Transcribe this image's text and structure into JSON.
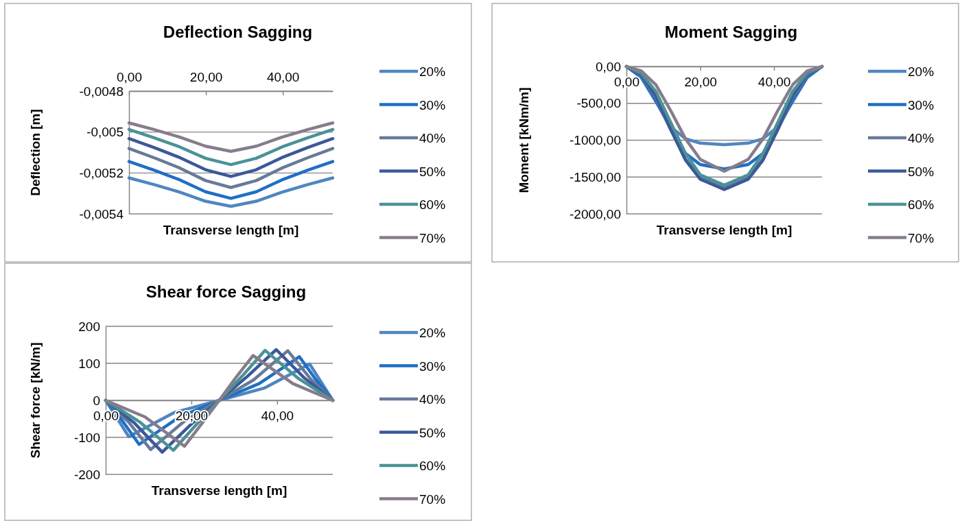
{
  "chart_data": [
    {
      "type": "line",
      "title": "Deflection Sagging",
      "xlabel": "Transverse length [m]",
      "ylabel": "Deflection [m]",
      "xlim": [
        0,
        53
      ],
      "xticks": [
        {
          "value": 0,
          "label": "0,00"
        },
        {
          "value": 20,
          "label": "20,00"
        },
        {
          "value": 40,
          "label": "40,00"
        }
      ],
      "ylim": [
        -0.0054,
        -0.0048
      ],
      "yticks": [
        {
          "value": -0.0048,
          "label": "-0,0048"
        },
        {
          "value": -0.005,
          "label": "-0,005"
        },
        {
          "value": -0.0052,
          "label": "-0,0052"
        },
        {
          "value": -0.0054,
          "label": "-0,0054"
        }
      ],
      "grid": "y",
      "legend": "right",
      "marker": "none",
      "line_style": "solid",
      "x": [
        0,
        6.6,
        13.25,
        19.9,
        26.5,
        33.1,
        39.75,
        46.4,
        53
      ],
      "series": [
        {
          "name": "20%",
          "color": "#4f86c0",
          "values": [
            -0.005224,
            -0.005257,
            -0.005294,
            -0.005338,
            -0.005363,
            -0.005338,
            -0.005294,
            -0.005257,
            -0.005224
          ]
        },
        {
          "name": "30%",
          "color": "#1f6fc5",
          "values": [
            -0.005144,
            -0.005187,
            -0.005234,
            -0.005292,
            -0.005324,
            -0.005292,
            -0.005234,
            -0.005187,
            -0.005144
          ]
        },
        {
          "name": "40%",
          "color": "#687a98",
          "values": [
            -0.00508,
            -0.005126,
            -0.005176,
            -0.005237,
            -0.005271,
            -0.005237,
            -0.005176,
            -0.005126,
            -0.00508
          ]
        },
        {
          "name": "50%",
          "color": "#3b5899",
          "values": [
            -0.005032,
            -0.005076,
            -0.005125,
            -0.005184,
            -0.005217,
            -0.005184,
            -0.005125,
            -0.005076,
            -0.005032
          ]
        },
        {
          "name": "60%",
          "color": "#4a9297",
          "values": [
            -0.004987,
            -0.005028,
            -0.005073,
            -0.005128,
            -0.005159,
            -0.005128,
            -0.005073,
            -0.005028,
            -0.004987
          ]
        },
        {
          "name": "70%",
          "color": "#877c8c",
          "values": [
            -0.004955,
            -0.004988,
            -0.005025,
            -0.005069,
            -0.005094,
            -0.005069,
            -0.005025,
            -0.004988,
            -0.004955
          ]
        }
      ]
    },
    {
      "type": "line",
      "title": "Moment Sagging",
      "xlabel": "Transverse length [m]",
      "ylabel": "Moment [kNm/m]",
      "xlim": [
        0,
        53
      ],
      "xticks": [
        {
          "value": 0,
          "label": "0,00"
        },
        {
          "value": 20,
          "label": "20,00"
        },
        {
          "value": 40,
          "label": "40,00"
        }
      ],
      "ylim": [
        -2000,
        0
      ],
      "yticks": [
        {
          "value": 0,
          "label": "0,00"
        },
        {
          "value": -500,
          "label": "-500,00"
        },
        {
          "value": -1000,
          "label": "-1000,00"
        },
        {
          "value": -1500,
          "label": "-1500,00"
        },
        {
          "value": -2000,
          "label": "-2000,00"
        }
      ],
      "grid": "y",
      "legend": "right",
      "marker": "none",
      "line_style": "solid",
      "x": [
        0,
        4,
        8,
        12,
        16,
        20,
        26.5,
        33,
        37,
        41,
        45,
        49,
        53
      ],
      "series": [
        {
          "name": "20%",
          "color": "#4f86c0",
          "values": [
            0,
            -150,
            -480,
            -820,
            -980,
            -1040,
            -1060,
            -1040,
            -980,
            -820,
            -480,
            -150,
            0
          ]
        },
        {
          "name": "30%",
          "color": "#1f6fc5",
          "values": [
            0,
            -140,
            -460,
            -850,
            -1180,
            -1330,
            -1390,
            -1330,
            -1180,
            -850,
            -460,
            -140,
            0
          ]
        },
        {
          "name": "40%",
          "color": "#687a98",
          "values": [
            0,
            -120,
            -420,
            -860,
            -1260,
            -1500,
            -1640,
            -1500,
            -1260,
            -860,
            -420,
            -120,
            0
          ]
        },
        {
          "name": "50%",
          "color": "#3b5899",
          "values": [
            0,
            -110,
            -400,
            -850,
            -1270,
            -1530,
            -1670,
            -1530,
            -1270,
            -850,
            -400,
            -110,
            0
          ]
        },
        {
          "name": "60%",
          "color": "#4a9297",
          "values": [
            0,
            -90,
            -340,
            -760,
            -1180,
            -1470,
            -1610,
            -1470,
            -1180,
            -760,
            -340,
            -90,
            0
          ]
        },
        {
          "name": "70%",
          "color": "#877c8c",
          "values": [
            0,
            -60,
            -250,
            -600,
            -980,
            -1260,
            -1420,
            -1260,
            -980,
            -600,
            -250,
            -60,
            0
          ]
        }
      ]
    },
    {
      "type": "line",
      "title": "Shear force Sagging",
      "xlabel": "Transverse length [m]",
      "ylabel": "Shear force [kN/m]",
      "xlim": [
        0,
        53
      ],
      "xticks": [
        {
          "value": 0,
          "label": "0,00"
        },
        {
          "value": 20,
          "label": "20,00"
        },
        {
          "value": 40,
          "label": "40,00"
        }
      ],
      "ylim": [
        -200,
        200
      ],
      "yticks": [
        200,
        100,
        0,
        -100,
        -200
      ],
      "grid": "y",
      "legend": "right",
      "marker": "none",
      "line_style": "solid",
      "series": [
        {
          "name": "20%",
          "color": "#4f86c0",
          "x": [
            0,
            2.7,
            5.4,
            16,
            26.5,
            37,
            47.6,
            50.3,
            53
          ],
          "values": [
            0,
            -49,
            -98,
            -33,
            0,
            33,
            98,
            49,
            0
          ]
        },
        {
          "name": "30%",
          "color": "#1f6fc5",
          "x": [
            0,
            3.9,
            7.8,
            17.2,
            26.5,
            35.8,
            45.2,
            49.1,
            53
          ],
          "values": [
            0,
            -55,
            -119,
            -45,
            0,
            45,
            118,
            55,
            0
          ]
        },
        {
          "name": "40%",
          "color": "#687a98",
          "x": [
            0,
            5.3,
            10.5,
            18.5,
            26.5,
            34.5,
            42.5,
            47.8,
            53
          ],
          "values": [
            0,
            -58,
            -133,
            -55,
            0,
            55,
            134,
            58,
            0
          ]
        },
        {
          "name": "50%",
          "color": "#3b5899",
          "x": [
            0,
            6.6,
            13.2,
            19.9,
            26.5,
            33.1,
            39.8,
            46.4,
            53
          ],
          "values": [
            0,
            -60,
            -140,
            -65,
            0,
            65,
            137,
            60,
            0
          ]
        },
        {
          "name": "60%",
          "color": "#4a9297",
          "x": [
            0,
            7.9,
            15.8,
            21.2,
            26.5,
            31.8,
            37.2,
            45.1,
            53
          ],
          "values": [
            0,
            -58,
            -135,
            -65,
            0,
            65,
            135,
            58,
            0
          ]
        },
        {
          "name": "70%",
          "color": "#877c8c",
          "x": [
            0,
            9.2,
            18.4,
            22.5,
            26.5,
            30.4,
            34.4,
            43.7,
            53
          ],
          "values": [
            0,
            -45,
            -124,
            -62,
            0,
            62,
            121,
            45,
            0
          ]
        }
      ]
    }
  ]
}
